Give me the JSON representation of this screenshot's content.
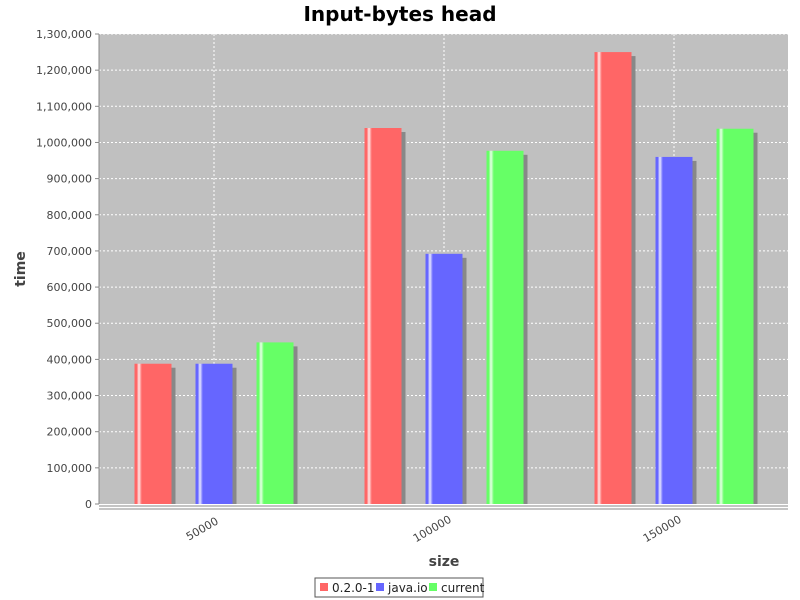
{
  "chart_data": {
    "type": "bar",
    "title": "Input-bytes head",
    "xlabel": "size",
    "ylabel": "time",
    "categories": [
      "50000",
      "100000",
      "150000"
    ],
    "series": [
      {
        "name": "0.2.0-1",
        "color": "#ff6666",
        "values": [
          388000,
          1040000,
          1250000
        ]
      },
      {
        "name": "java.io",
        "color": "#6666ff",
        "values": [
          388000,
          692000,
          960000
        ]
      },
      {
        "name": "current",
        "color": "#66ff66",
        "values": [
          447000,
          977000,
          1038000
        ]
      }
    ],
    "ylim": [
      0,
      1300000
    ],
    "yticks": [
      0,
      100000,
      200000,
      300000,
      400000,
      500000,
      600000,
      700000,
      800000,
      900000,
      1000000,
      1100000,
      1200000,
      1300000
    ],
    "grid": true,
    "legend_position": "bottom",
    "plot_background": "#c0c0c0"
  }
}
